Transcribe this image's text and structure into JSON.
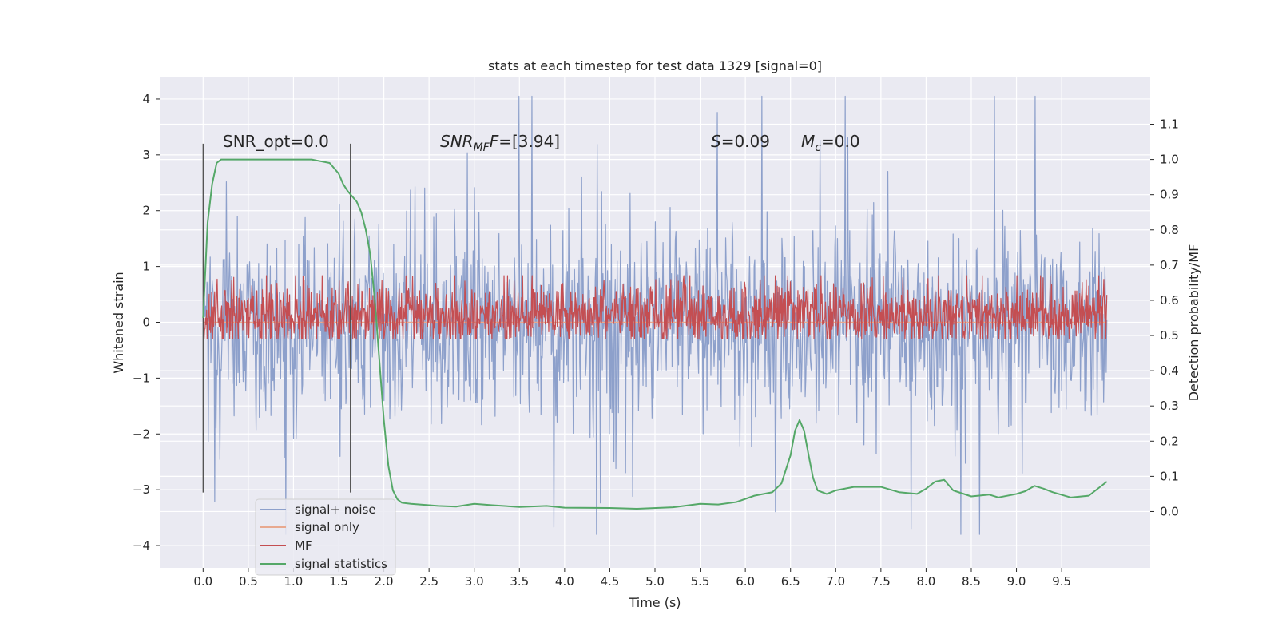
{
  "chart_data": {
    "type": "line",
    "title": "stats at each timestep for test data 1329 [signal=0]",
    "xlabel": "Time (s)",
    "ylabel_left": "Whitened strain",
    "ylabel_right": "Detection probability/MF",
    "xlim": [
      -0.48,
      10.48
    ],
    "ylim_left": [
      -4.4,
      4.4
    ],
    "ylim_right": [
      -0.16,
      1.235
    ],
    "x_ticks": [
      0.0,
      0.5,
      1.0,
      1.5,
      2.0,
      2.5,
      3.0,
      3.5,
      4.0,
      4.5,
      5.0,
      5.5,
      6.0,
      6.5,
      7.0,
      7.5,
      8.0,
      8.5,
      9.0,
      9.5
    ],
    "x_tick_labels": [
      "0.0",
      "0.5",
      "1.0",
      "1.5",
      "2.0",
      "2.5",
      "3.0",
      "3.5",
      "4.0",
      "4.5",
      "5.0",
      "5.5",
      "6.0",
      "6.5",
      "7.0",
      "7.5",
      "8.0",
      "8.5",
      "9.0",
      "9.5"
    ],
    "y_ticks_left": [
      -4,
      -3,
      -2,
      -1,
      0,
      1,
      2,
      3,
      4
    ],
    "y_tick_labels_left": [
      "−4",
      "−3",
      "−2",
      "−1",
      "0",
      "1",
      "2",
      "3",
      "4"
    ],
    "y_ticks_right": [
      0.0,
      0.1,
      0.2,
      0.3,
      0.4,
      0.5,
      0.6,
      0.7,
      0.8,
      0.9,
      1.0,
      1.1
    ],
    "y_tick_labels_right": [
      "0.0",
      "0.1",
      "0.2",
      "0.3",
      "0.4",
      "0.5",
      "0.6",
      "0.7",
      "0.8",
      "0.9",
      "1.0",
      "1.1"
    ],
    "grid": true,
    "legend_position": "lower-left",
    "series": [
      {
        "name": "signal+ noise",
        "axis": "left",
        "color": "#8da0cb",
        "noise": {
          "t_start": 0.0,
          "t_end": 10.0,
          "n": 1400,
          "mean": -0.05,
          "typical_low": -1.2,
          "typical_high": 1.2,
          "max": 4.05,
          "min": -3.8,
          "seed": 1329
        }
      },
      {
        "name": "signal only",
        "axis": "left",
        "color": "#e8a98f",
        "x": [
          0.0,
          10.0
        ],
        "y": [
          0.0,
          0.0
        ]
      },
      {
        "name": "MF",
        "axis": "right",
        "color": "#c44e52",
        "noise": {
          "t_start": 0.0,
          "t_end": 10.0,
          "n": 1800,
          "mean": 0.55,
          "typical_low": 0.5,
          "typical_high": 0.62,
          "max": 0.67,
          "min": 0.49,
          "seed": 777
        }
      },
      {
        "name": "signal statistics",
        "axis": "right",
        "color": "#55a868",
        "x": [
          0.0,
          0.05,
          0.1,
          0.15,
          0.2,
          0.3,
          0.5,
          0.8,
          1.0,
          1.2,
          1.3,
          1.4,
          1.5,
          1.55,
          1.6,
          1.7,
          1.75,
          1.8,
          1.85,
          1.9,
          1.95,
          2.0,
          2.05,
          2.1,
          2.15,
          2.2,
          2.3,
          2.4,
          2.6,
          2.8,
          3.0,
          3.2,
          3.5,
          3.8,
          4.0,
          4.5,
          4.8,
          5.2,
          5.5,
          5.7,
          5.9,
          6.1,
          6.3,
          6.4,
          6.5,
          6.55,
          6.6,
          6.65,
          6.7,
          6.75,
          6.8,
          6.9,
          7.0,
          7.2,
          7.5,
          7.7,
          7.9,
          8.0,
          8.1,
          8.2,
          8.3,
          8.5,
          8.7,
          8.8,
          9.0,
          9.1,
          9.2,
          9.3,
          9.4,
          9.6,
          9.8,
          10.0
        ],
        "y": [
          0.55,
          0.82,
          0.93,
          0.99,
          1.0,
          1.0,
          1.0,
          1.0,
          1.0,
          1.0,
          0.995,
          0.99,
          0.96,
          0.93,
          0.91,
          0.88,
          0.85,
          0.8,
          0.73,
          0.6,
          0.43,
          0.26,
          0.13,
          0.06,
          0.035,
          0.025,
          0.022,
          0.02,
          0.016,
          0.014,
          0.022,
          0.018,
          0.013,
          0.016,
          0.011,
          0.01,
          0.008,
          0.012,
          0.022,
          0.02,
          0.027,
          0.045,
          0.055,
          0.08,
          0.16,
          0.23,
          0.26,
          0.23,
          0.16,
          0.095,
          0.06,
          0.05,
          0.06,
          0.07,
          0.07,
          0.055,
          0.05,
          0.065,
          0.085,
          0.09,
          0.06,
          0.043,
          0.048,
          0.04,
          0.05,
          0.058,
          0.073,
          0.065,
          0.055,
          0.04,
          0.045,
          0.085
        ]
      }
    ],
    "vertical_markers": {
      "axis": "left",
      "x": [
        0.0,
        1.63
      ],
      "y_min": -3.05,
      "y_max": 3.2,
      "color": "#4c4c4c"
    },
    "annotations": [
      {
        "id": "snr-opt",
        "text": "SNR_opt=0.0"
      },
      {
        "id": "snr-mf",
        "text": "SNR",
        "sub": "MF",
        "after": "=[3.94]"
      },
      {
        "id": "s-stat",
        "text": "S",
        "after": "=0.09"
      },
      {
        "id": "mc",
        "text": "M",
        "sub": "c",
        "after": "=0.0"
      }
    ],
    "colors": {
      "background": "#eaeaf2",
      "grid": "#ffffff",
      "text": "#262626"
    }
  }
}
